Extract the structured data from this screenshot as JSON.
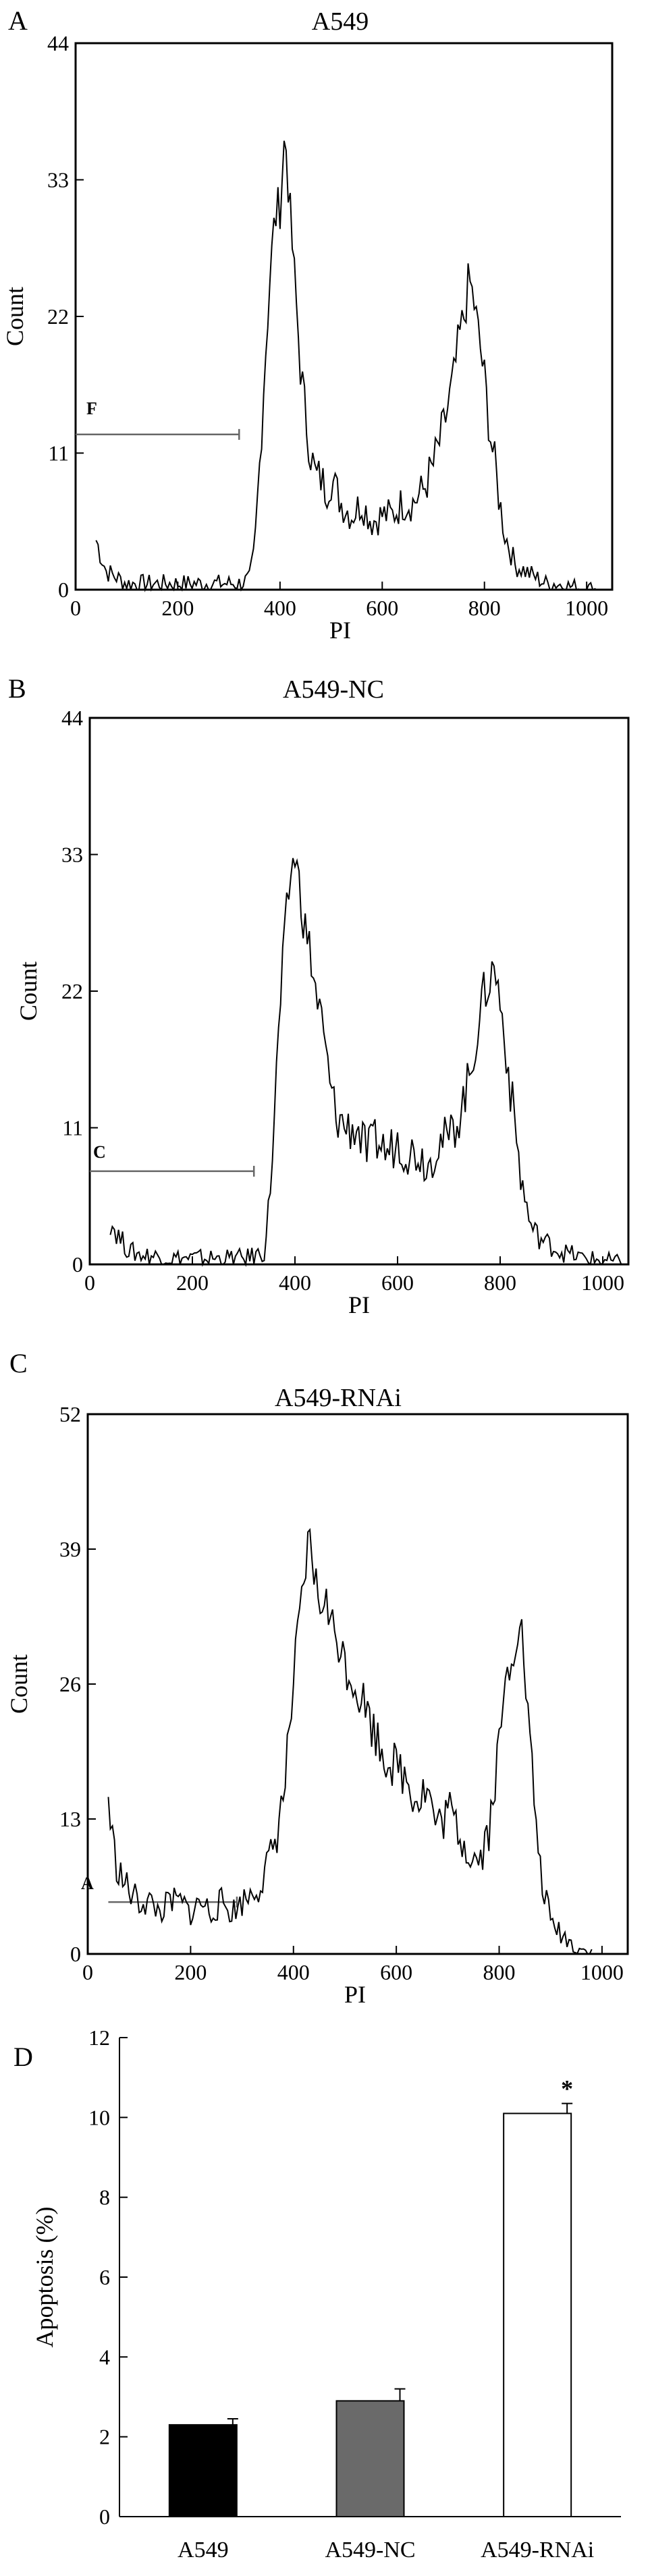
{
  "panels": [
    {
      "letter": "A",
      "title": "A549",
      "xlabel": "PI",
      "ylabel": "Count",
      "gate_label": "F"
    },
    {
      "letter": "B",
      "title": "A549-NC",
      "xlabel": "PI",
      "ylabel": "Count",
      "gate_label": "C"
    },
    {
      "letter": "C",
      "title": "A549-RNAi",
      "xlabel": "PI",
      "ylabel": "Count",
      "gate_label": "A"
    },
    {
      "letter": "D"
    }
  ],
  "chart_data": [
    {
      "type": "line",
      "title": "A549",
      "xlabel": "PI",
      "ylabel": "Count",
      "xlim": [
        0,
        1050
      ],
      "ylim": [
        0,
        44
      ],
      "xticks": [
        0,
        200,
        400,
        600,
        800,
        1000
      ],
      "yticks": [
        0,
        11,
        22,
        33,
        44
      ],
      "gate": {
        "label": "F",
        "x": [
          0,
          320
        ],
        "y": 12.5
      },
      "series": [
        {
          "x": [
            40,
            60,
            80,
            100,
            120,
            140,
            160,
            180,
            200,
            220,
            240,
            260,
            280,
            300,
            320,
            340,
            350,
            360,
            370,
            380,
            390,
            400,
            410,
            420,
            430,
            440,
            450,
            460,
            470,
            480,
            490,
            500,
            520,
            540,
            560,
            580,
            600,
            620,
            640,
            660,
            680,
            700,
            720,
            740,
            750,
            760,
            770,
            780,
            790,
            800,
            810,
            820,
            830,
            840,
            860,
            880,
            900,
            920,
            940,
            960,
            980,
            1000,
            1020
          ],
          "y": [
            4,
            1.5,
            1,
            0.5,
            0.5,
            0.5,
            0.5,
            0.5,
            0.5,
            0.5,
            0.5,
            0.5,
            0.5,
            0.5,
            0.5,
            0.8,
            3,
            10,
            18,
            25,
            30,
            31,
            37,
            30,
            24,
            18,
            14,
            11,
            9,
            9,
            8,
            9,
            7,
            6,
            7,
            5.5,
            6,
            6,
            7,
            7,
            8,
            10,
            13,
            17,
            20,
            22,
            25,
            23,
            20,
            17,
            13,
            10,
            7,
            4.5,
            2,
            1.5,
            1,
            0.5,
            0.5,
            0.3,
            0.2,
            0.1,
            0
          ]
        }
      ]
    },
    {
      "type": "line",
      "title": "A549-NC",
      "xlabel": "PI",
      "ylabel": "Count",
      "xlim": [
        0,
        1050
      ],
      "ylim": [
        0,
        44
      ],
      "xticks": [
        0,
        200,
        400,
        600,
        800,
        1000
      ],
      "yticks": [
        0,
        11,
        22,
        33,
        44
      ],
      "gate": {
        "label": "C",
        "x": [
          0,
          320
        ],
        "y": 7.5
      },
      "series": [
        {
          "x": [
            40,
            60,
            80,
            100,
            120,
            140,
            160,
            180,
            200,
            220,
            240,
            260,
            280,
            300,
            320,
            340,
            350,
            360,
            370,
            380,
            390,
            400,
            410,
            420,
            430,
            440,
            450,
            460,
            470,
            480,
            500,
            520,
            540,
            560,
            580,
            600,
            620,
            640,
            660,
            680,
            700,
            720,
            740,
            760,
            770,
            780,
            790,
            800,
            810,
            820,
            830,
            840,
            860,
            880,
            900,
            920,
            940,
            960,
            980,
            1000,
            1020,
            1040
          ],
          "y": [
            3.5,
            2,
            1,
            0.8,
            0.7,
            0.6,
            0.5,
            0.5,
            0.5,
            0.5,
            0.5,
            0.5,
            0.5,
            0.5,
            0.7,
            1,
            5,
            12,
            20,
            26,
            31,
            33,
            30,
            27,
            25,
            22,
            20,
            17,
            14,
            12,
            11,
            11,
            9,
            10,
            9,
            10,
            9,
            9,
            8,
            10,
            10,
            12,
            15,
            20,
            22,
            23,
            24,
            21,
            18,
            14,
            11,
            7,
            3,
            2,
            1.5,
            1,
            0.8,
            0.5,
            0.4,
            0.3,
            0.2,
            0
          ]
        }
      ]
    },
    {
      "type": "line",
      "title": "A549-RNAi",
      "xlabel": "PI",
      "ylabel": "Count",
      "xlim": [
        0,
        1050
      ],
      "ylim": [
        0,
        52
      ],
      "xticks": [
        0,
        200,
        400,
        600,
        800,
        1000
      ],
      "yticks": [
        0,
        13,
        26,
        39,
        52
      ],
      "gate": {
        "label": "A",
        "x": [
          40,
          290
        ],
        "y": 5
      },
      "series": [
        {
          "x": [
            40,
            50,
            60,
            80,
            100,
            120,
            140,
            160,
            180,
            200,
            220,
            240,
            260,
            280,
            300,
            320,
            340,
            360,
            380,
            390,
            400,
            410,
            420,
            430,
            440,
            450,
            460,
            470,
            480,
            490,
            500,
            520,
            540,
            560,
            580,
            600,
            620,
            640,
            660,
            680,
            700,
            720,
            740,
            760,
            780,
            790,
            800,
            810,
            820,
            830,
            840,
            850,
            860,
            870,
            880,
            900,
            920,
            940,
            960,
            980
          ],
          "y": [
            15,
            10,
            8,
            6,
            5,
            5,
            4,
            5,
            5,
            4,
            5,
            4,
            5,
            4,
            5,
            6,
            7,
            10,
            15,
            20,
            26,
            31,
            35,
            40,
            37,
            33,
            35,
            32,
            31,
            30,
            28,
            26,
            24,
            21,
            19,
            18,
            17,
            15,
            16,
            12,
            14,
            12,
            10,
            9,
            12,
            16,
            20,
            25,
            28,
            30,
            33,
            27,
            20,
            14,
            8,
            3,
            2,
            1,
            0.5,
            0
          ]
        }
      ]
    },
    {
      "type": "bar",
      "categories": [
        "A549",
        "A549-NC",
        "A549-RNAi"
      ],
      "values": [
        2.3,
        2.9,
        10.1
      ],
      "errors": [
        0.15,
        0.3,
        0.25
      ],
      "colors": [
        "#000000",
        "#6a6a6a",
        "#ffffff"
      ],
      "ylabel": "Apoptosis (%)",
      "ylim": [
        0,
        12
      ],
      "yticks": [
        0,
        2,
        4,
        6,
        8,
        10,
        12
      ],
      "annotations": [
        {
          "category": "A549-RNAi",
          "text": "*"
        }
      ]
    }
  ]
}
